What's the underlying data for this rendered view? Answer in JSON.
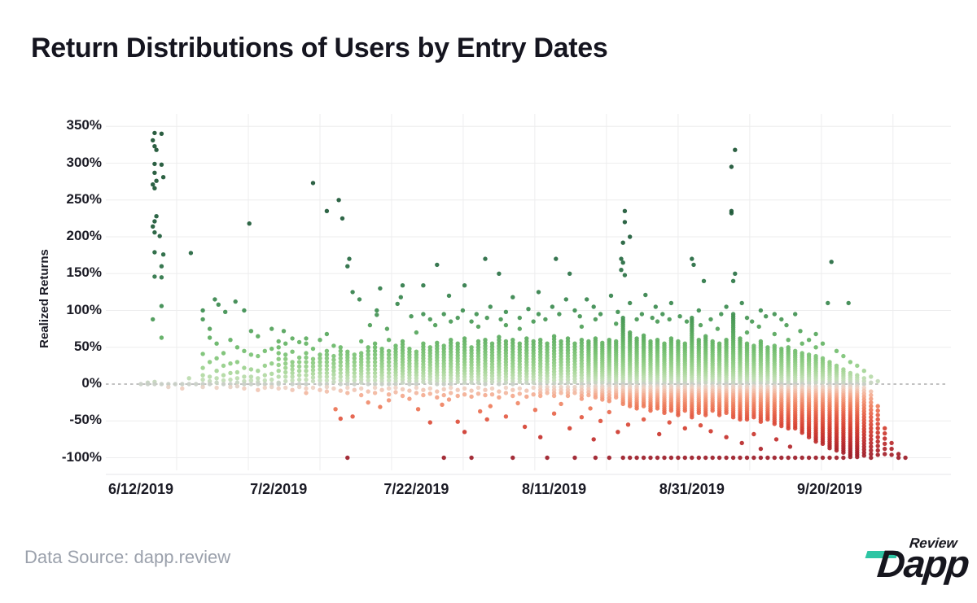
{
  "title": "Return Distributions of Users by Entry Dates",
  "y_axis": {
    "title": "Realized Returns"
  },
  "footer": {
    "source": "Data Source: dapp.review",
    "logo_main": "Dapp",
    "logo_top": "Review"
  },
  "chart_data": {
    "type": "scatter",
    "title": "Return Distributions of Users by Entry Dates",
    "xlabel": "",
    "ylabel": "Realized Returns",
    "y_ticks": [
      {
        "value": 350,
        "label": "350%"
      },
      {
        "value": 300,
        "label": "300%"
      },
      {
        "value": 250,
        "label": "250%"
      },
      {
        "value": 200,
        "label": "200%"
      },
      {
        "value": 150,
        "label": "150%"
      },
      {
        "value": 100,
        "label": "100%"
      },
      {
        "value": 50,
        "label": "50%"
      },
      {
        "value": 0,
        "label": "0%"
      },
      {
        "value": -50,
        "label": "-50%"
      },
      {
        "value": -100,
        "label": "-100%"
      }
    ],
    "x_ticks": [
      {
        "day": 0,
        "label": "6/12/2019"
      },
      {
        "day": 20,
        "label": "7/2/2019"
      },
      {
        "day": 40,
        "label": "7/22/2019"
      },
      {
        "day": 60,
        "label": "8/11/2019"
      },
      {
        "day": 80,
        "label": "8/31/2019"
      },
      {
        "day": 100,
        "label": "9/20/2019"
      }
    ],
    "ylim": [
      -115,
      370
    ],
    "xlim_days": [
      -5,
      113
    ],
    "grid": true,
    "legend": "none",
    "zero_line": {
      "style": "dashed",
      "value": 0
    },
    "range_syntax": "string entries 'a..b:step' expand to an inclusive stack of points from a to b",
    "style": {
      "grid_color": "#ededee",
      "axis_line_color": "#e5e5e8",
      "zero_line_color": "#aeaeae",
      "dot_radius": 2.7,
      "dot_opacity": 0.92,
      "v_gridline_days": [
        5.2,
        15.6,
        26,
        36.4,
        46.8,
        57.2,
        67.6,
        78,
        88.4,
        98.8,
        109.2
      ],
      "color_stops": [
        [
          350,
          "#194f31"
        ],
        [
          200,
          "#1d5b38"
        ],
        [
          150,
          "#2a7245"
        ],
        [
          100,
          "#3d8e50"
        ],
        [
          70,
          "#55a55b"
        ],
        [
          50,
          "#6ab968"
        ],
        [
          30,
          "#8aca7f"
        ],
        [
          15,
          "#a9d79a"
        ],
        [
          5,
          "#c2ddb6"
        ],
        [
          0,
          "#c8cec6"
        ],
        [
          -5,
          "#eed2c4"
        ],
        [
          -15,
          "#f4ab90"
        ],
        [
          -30,
          "#ee7c5a"
        ],
        [
          -45,
          "#e35942"
        ],
        [
          -60,
          "#d43f30"
        ],
        [
          -75,
          "#c12e2c"
        ],
        [
          -90,
          "#aa2229"
        ],
        [
          -100,
          "#9c1c28"
        ]
      ]
    },
    "columns": [
      {
        "d": 0,
        "ys": [
          0
        ]
      },
      {
        "d": 1,
        "ys": [
          2,
          0
        ]
      },
      {
        "d": 2,
        "ys": [
          341,
          331,
          323,
          318,
          299,
          287,
          276,
          271,
          266,
          228,
          221,
          214,
          206,
          179,
          146,
          88,
          3,
          0
        ]
      },
      {
        "d": 3,
        "ys": [
          340,
          298,
          281,
          201,
          176,
          160,
          145,
          106,
          63,
          0
        ]
      },
      {
        "d": 4,
        "ys": [
          0,
          -4
        ]
      },
      {
        "d": 5,
        "ys": [
          0
        ]
      },
      {
        "d": 6,
        "ys": [
          0,
          -6
        ]
      },
      {
        "d": 7,
        "ys": [
          178,
          8,
          0
        ]
      },
      {
        "d": 8,
        "ys": [
          0
        ]
      },
      {
        "d": 9,
        "ys": [
          100,
          88,
          41,
          22,
          12,
          6,
          0,
          -4
        ]
      },
      {
        "d": 10,
        "ys": [
          75,
          63,
          30,
          10,
          4,
          0
        ]
      },
      {
        "d": 11,
        "ys": [
          115,
          108,
          55,
          35,
          18,
          8,
          2,
          -5
        ]
      },
      {
        "d": 12,
        "ys": [
          98,
          42,
          25,
          12,
          5,
          0
        ]
      },
      {
        "d": 13,
        "ys": [
          60,
          28,
          15,
          6,
          0,
          -4
        ]
      },
      {
        "d": 14,
        "ys": [
          112,
          50,
          30,
          16,
          8,
          2,
          -3
        ]
      },
      {
        "d": 15,
        "ys": [
          100,
          45,
          22,
          10,
          4,
          0,
          -6
        ]
      },
      {
        "d": 16,
        "ys": [
          218,
          72,
          40,
          20,
          10,
          5,
          0
        ]
      },
      {
        "d": 17,
        "ys": [
          65,
          38,
          18,
          8,
          3,
          0,
          -8
        ]
      },
      {
        "d": 18,
        "ys": [
          45,
          25,
          12,
          5,
          0,
          -5
        ]
      },
      {
        "d": 19,
        "ys": [
          75,
          48,
          28,
          14,
          6,
          0,
          -4
        ]
      },
      {
        "d": 20,
        "ys": [
          "58..2:8",
          0,
          -6
        ]
      },
      {
        "d": 21,
        "ys": [
          72,
          55,
          "40..0:6",
          -5
        ]
      },
      {
        "d": 22,
        "ys": [
          62,
          44,
          "30..0:5",
          -8
        ]
      },
      {
        "d": 23,
        "ys": [
          57,
          "36..0:6",
          -4
        ]
      },
      {
        "d": 24,
        "ys": [
          62,
          55,
          "42..0:6",
          -6,
          -12
        ]
      },
      {
        "d": 25,
        "ys": [
          273,
          48,
          "34..0:5",
          -5
        ]
      },
      {
        "d": 26,
        "ys": [
          60,
          "40..0:5",
          -8
        ]
      },
      {
        "d": 27,
        "ys": [
          235,
          68,
          "45..0:5",
          -4,
          -10
        ]
      },
      {
        "d": 28,
        "ys": [
          52,
          "38..0:5",
          -6,
          -34
        ]
      },
      {
        "d": 29,
        "ys": [
          250,
          225,
          "50..0:5",
          -9,
          -47
        ]
      },
      {
        "d": 30,
        "ys": [
          170,
          160,
          "44..0:4",
          -5,
          -12,
          -100
        ]
      },
      {
        "d": 31,
        "ys": [
          125,
          "40..0:5",
          -8,
          -44
        ]
      },
      {
        "d": 32,
        "ys": [
          115,
          58,
          "42..0:4",
          -6,
          -15
        ]
      },
      {
        "d": 33,
        "ys": [
          80,
          "50..0:5",
          -10,
          -25
        ]
      },
      {
        "d": 34,
        "ys": [
          100,
          94,
          "55..0:5",
          -5,
          -12
        ]
      },
      {
        "d": 35,
        "ys": [
          130,
          "48..0:4",
          -8,
          -31
        ]
      },
      {
        "d": 36,
        "ys": [
          75,
          60,
          "45..0:5",
          -6,
          -14,
          -22
        ]
      },
      {
        "d": 37,
        "ys": [
          109,
          "52..0:4",
          -5,
          -11
        ]
      },
      {
        "d": 38,
        "ys": [
          134,
          118,
          "58..0:4",
          -7,
          -16
        ]
      },
      {
        "d": 39,
        "ys": [
          92,
          "48..0:4",
          -9,
          -20
        ]
      },
      {
        "d": 40,
        "ys": [
          70,
          "44..0:4",
          -5,
          -12,
          -34
        ]
      },
      {
        "d": 41,
        "ys": [
          134,
          95,
          "55..0:4",
          -8,
          -15
        ]
      },
      {
        "d": 42,
        "ys": [
          88,
          "50..0:4",
          -6,
          -13,
          -52
        ]
      },
      {
        "d": 43,
        "ys": [
          162,
          80,
          "56..0:4",
          -10,
          -18
        ]
      },
      {
        "d": 44,
        "ys": [
          95,
          "52..0:4",
          -7,
          -15,
          -28,
          -100
        ]
      },
      {
        "d": 45,
        "ys": [
          120,
          85,
          "60..0:4",
          -5,
          -12,
          -21
        ]
      },
      {
        "d": 46,
        "ys": [
          90,
          "55..0:4",
          -8,
          -16,
          -51
        ]
      },
      {
        "d": 47,
        "ys": [
          134,
          100,
          "62..0:4",
          -6,
          -14,
          -65
        ]
      },
      {
        "d": 48,
        "ys": [
          85,
          "50..0:4",
          -9,
          -17,
          -100
        ]
      },
      {
        "d": 49,
        "ys": [
          95,
          78,
          "58..0:4",
          -5,
          -13,
          -37
        ]
      },
      {
        "d": 50,
        "ys": [
          170,
          90,
          "60..0:4",
          -8,
          -15,
          -48
        ]
      },
      {
        "d": 51,
        "ys": [
          105,
          "55..0:4",
          -6,
          -14,
          -30
        ]
      },
      {
        "d": 52,
        "ys": [
          150,
          88,
          "64..0:4",
          -10,
          -18
        ]
      },
      {
        "d": 53,
        "ys": [
          98,
          80,
          "58..0:4",
          -5,
          -12,
          -44
        ]
      },
      {
        "d": 54,
        "ys": [
          118,
          "60..0:4",
          -8,
          -16,
          -100
        ]
      },
      {
        "d": 55,
        "ys": [
          90,
          75,
          "55..0:4",
          -6,
          -13,
          -26
        ]
      },
      {
        "d": 56,
        "ys": [
          102,
          "62..0:4",
          -9,
          -17,
          -58
        ]
      },
      {
        "d": 57,
        "ys": [
          85,
          "58..0:4",
          -5,
          -14,
          -35
        ]
      },
      {
        "d": 58,
        "ys": [
          125,
          95,
          "60..0:4",
          "-4..-16:4",
          -72
        ]
      },
      {
        "d": 59,
        "ys": [
          88,
          "55..0:4",
          "-4..-12:4",
          -100
        ]
      },
      {
        "d": 60,
        "ys": [
          170,
          105,
          "65..0:4",
          "-4..-18:4",
          -40
        ]
      },
      {
        "d": 61,
        "ys": [
          95,
          "58..0:4",
          "-4..-14:4",
          -27
        ]
      },
      {
        "d": 62,
        "ys": [
          150,
          115,
          "62..0:4",
          "-4..-16:4",
          -60
        ]
      },
      {
        "d": 63,
        "ys": [
          100,
          "55..0:4",
          "-4..-12:4",
          -100
        ]
      },
      {
        "d": 64,
        "ys": [
          92,
          78,
          "60..0:4",
          "-4..-20:4",
          -45
        ]
      },
      {
        "d": 65,
        "ys": [
          115,
          "58..0:3",
          "-3..-15:4",
          -33
        ]
      },
      {
        "d": 66,
        "ys": [
          105,
          88,
          "62..0:3",
          "-3..-18:3",
          -75,
          -100
        ]
      },
      {
        "d": 67,
        "ys": [
          95,
          "56..0:3",
          "-3..-22:3",
          -50
        ]
      },
      {
        "d": 68,
        "ys": [
          120,
          "60..0:3",
          "-3..-25:4",
          -38,
          -100
        ]
      },
      {
        "d": 69,
        "ys": [
          98,
          82,
          "58..0:3",
          "-3..-20:3",
          -65
        ]
      },
      {
        "d": 70,
        "ys": [
          235,
          220,
          192,
          170,
          165,
          155,
          148,
          "90..0:3",
          "-3..-28:3",
          -100
        ]
      },
      {
        "d": 71,
        "ys": [
          200,
          110,
          "70..0:3",
          "-3..-30:3",
          -55,
          -100
        ]
      },
      {
        "d": 72,
        "ys": [
          88,
          "62..0:3",
          "-3..-35:3",
          -100
        ]
      },
      {
        "d": 73,
        "ys": [
          121,
          95,
          "66..0:3",
          "-3..-32:3",
          -48,
          -100
        ]
      },
      {
        "d": 74,
        "ys": [
          90,
          "58..0:3",
          "-3..-38:3",
          -100
        ]
      },
      {
        "d": 75,
        "ys": [
          105,
          85,
          "60..0:3",
          "-3..-35:3",
          -68,
          -100
        ]
      },
      {
        "d": 76,
        "ys": [
          95,
          "55..0:3",
          "-3..-40:3",
          -100
        ]
      },
      {
        "d": 77,
        "ys": [
          110,
          88,
          "62..0:3",
          "-3..-36:3",
          -52,
          -100
        ]
      },
      {
        "d": 78,
        "ys": [
          92,
          "58..0:3",
          "-3..-42:3",
          -100
        ]
      },
      {
        "d": 79,
        "ys": [
          85,
          "55..0:3",
          "-3..-38:3",
          -60,
          -100
        ]
      },
      {
        "d": 80,
        "ys": [
          170,
          162,
          "90..0:3",
          "-3..-45:3",
          -100
        ]
      },
      {
        "d": 81,
        "ys": [
          100,
          80,
          "60..0:3",
          "-3..-40:3",
          -56,
          -100
        ]
      },
      {
        "d": 82,
        "ys": [
          140,
          "65..0:3",
          "-3..-42:3",
          -100
        ]
      },
      {
        "d": 83,
        "ys": [
          88,
          "58..0:3",
          "-3..-38:3",
          -64,
          -100
        ]
      },
      {
        "d": 84,
        "ys": [
          95,
          75,
          "55..0:3",
          "-3..-44:3",
          -100
        ]
      },
      {
        "d": 85,
        "ys": [
          105,
          "60..0:3",
          "-3..-40:3",
          -72,
          -100
        ]
      },
      {
        "d": 86,
        "ys": [
          318,
          295,
          235,
          232,
          150,
          140,
          "95..0:3",
          "-3..-45:3",
          -100
        ]
      },
      {
        "d": 87,
        "ys": [
          110,
          "62..0:3",
          "-3..-48:3",
          -80,
          -100
        ]
      },
      {
        "d": 88,
        "ys": [
          90,
          70,
          "55..0:3",
          "-3..-50:3",
          -100
        ]
      },
      {
        "d": 89,
        "ys": [
          85,
          "52..0:3",
          "-3..-46:3",
          -68,
          -100
        ]
      },
      {
        "d": 90,
        "ys": [
          100,
          78,
          "58..0:3",
          "-3..-52:3",
          -88,
          -100
        ]
      },
      {
        "d": 91,
        "ys": [
          92,
          "50..0:3",
          "-3..-48:3",
          -100
        ]
      },
      {
        "d": 92,
        "ys": [
          95,
          68,
          "52..0:3",
          "-3..-55:3",
          -75,
          -100
        ]
      },
      {
        "d": 93,
        "ys": [
          88,
          "48..0:3",
          "-3..-58:3",
          -100
        ]
      },
      {
        "d": 94,
        "ys": [
          80,
          60,
          "50..0:3",
          "-3..-62:3",
          -85,
          -100
        ]
      },
      {
        "d": 95,
        "ys": [
          95,
          "45..0:3",
          "-3..-60:3",
          -100
        ]
      },
      {
        "d": 96,
        "ys": [
          72,
          55,
          "42..0:3",
          "-3..-68:3",
          -100
        ]
      },
      {
        "d": 97,
        "ys": [
          60,
          "40..0:3",
          "-3..-72:3",
          -100
        ]
      },
      {
        "d": 98,
        "ys": [
          68,
          50,
          "38..0:3",
          "-3..-78:3",
          -100
        ]
      },
      {
        "d": 99,
        "ys": [
          55,
          "35..0:3",
          "-3..-82:3",
          -100
        ]
      },
      {
        "d": 100,
        "ys": [
          166,
          110,
          "30..0:3",
          "-3..-88:3",
          -100
        ]
      },
      {
        "d": 101,
        "ys": [
          45,
          "25..0:3",
          "-3..-92:3",
          -100
        ]
      },
      {
        "d": 102,
        "ys": [
          38,
          "20..0:3",
          "-3..-95:3",
          -100
        ]
      },
      {
        "d": 103,
        "ys": [
          110,
          30,
          "15..0:3",
          "-3..-100:3"
        ]
      },
      {
        "d": 104,
        "ys": [
          25,
          "12..0:3",
          "-3..-100:3"
        ]
      },
      {
        "d": 105,
        "ys": [
          18,
          "8..0:4",
          "-5..-100:4"
        ]
      },
      {
        "d": 106,
        "ys": [
          10,
          2,
          "-10..-100:5"
        ]
      },
      {
        "d": 107,
        "ys": [
          4,
          "-30..-100:6"
        ]
      },
      {
        "d": 108,
        "ys": [
          "-60..-100:7"
        ]
      },
      {
        "d": 109,
        "ys": [
          "-80..-100:8"
        ]
      },
      {
        "d": 110,
        "ys": [
          -95,
          -100
        ]
      },
      {
        "d": 111,
        "ys": [
          -100
        ]
      }
    ]
  }
}
